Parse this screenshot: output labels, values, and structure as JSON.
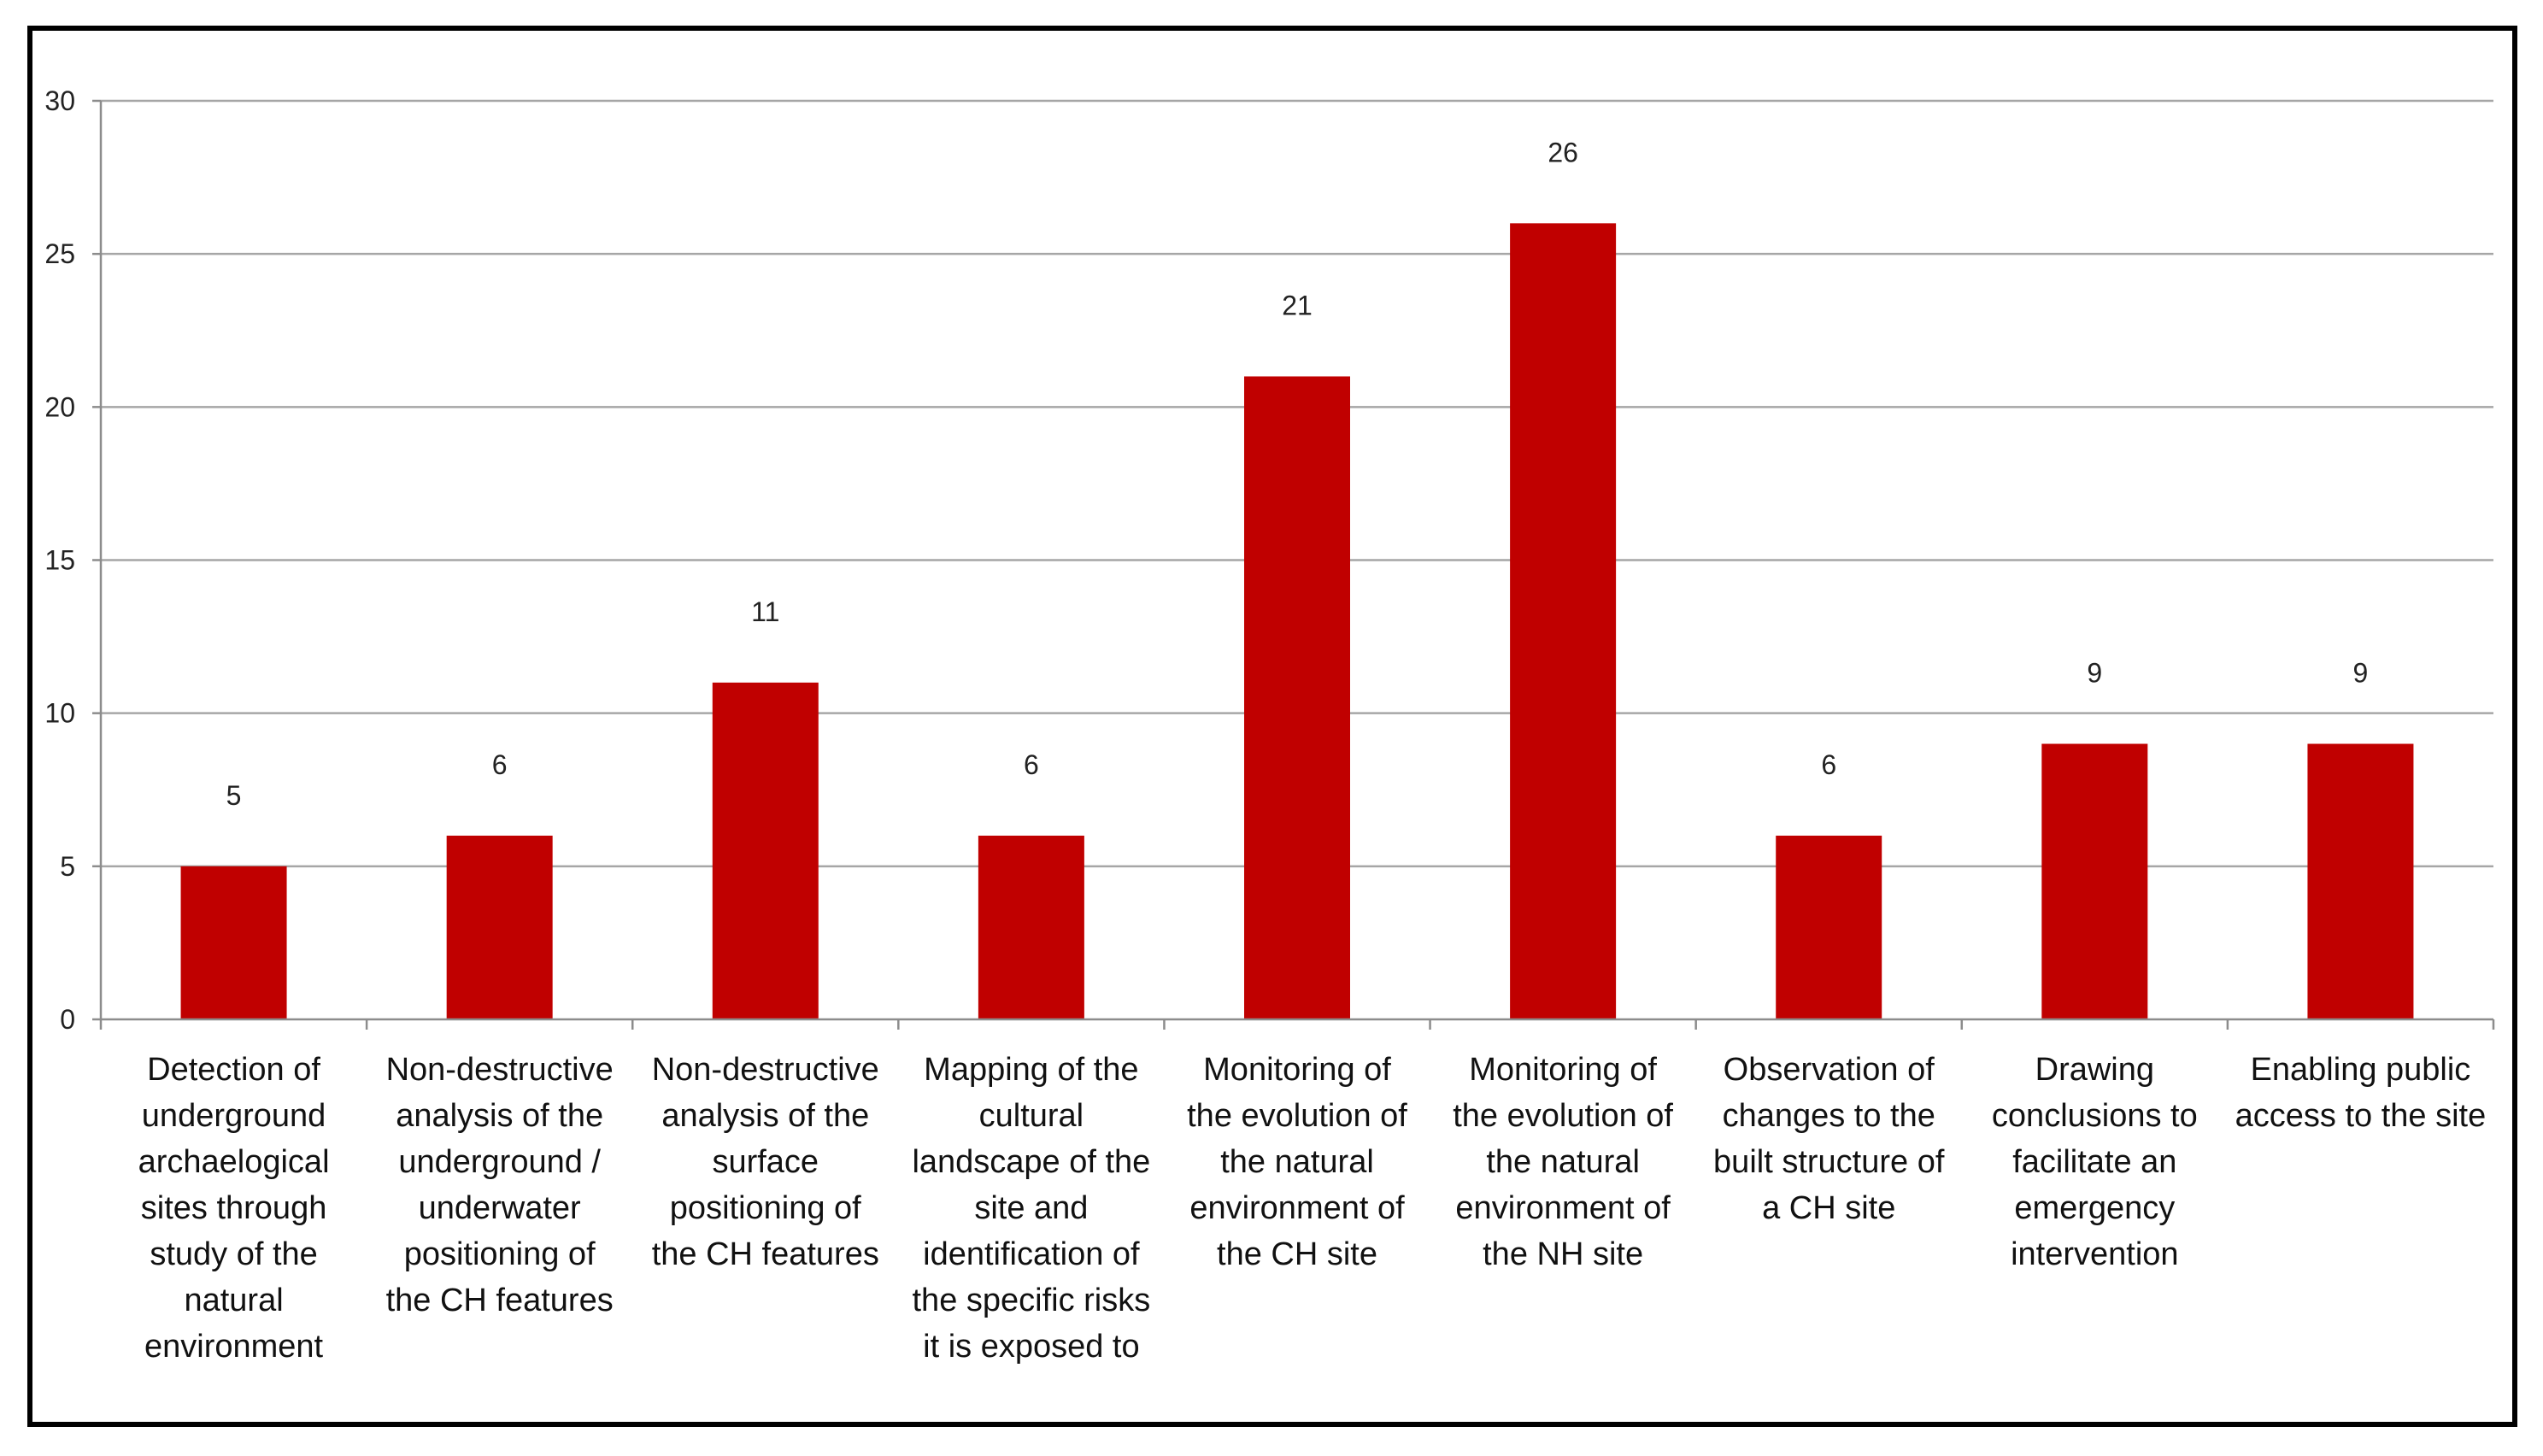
{
  "chart_data": {
    "type": "bar",
    "title": "",
    "xlabel": "",
    "ylabel": "",
    "ylim": [
      0,
      30
    ],
    "yticks": [
      0,
      5,
      10,
      15,
      20,
      25,
      30
    ],
    "grid": true,
    "legend": "none",
    "bar_color": "#c00000",
    "categories": [
      [
        "Detection of",
        "underground",
        "archaelogical",
        "sites through",
        "study of the",
        "natural",
        "environment"
      ],
      [
        "Non-destructive",
        "analysis of the",
        "underground /",
        "underwater",
        "positioning of",
        "the CH features"
      ],
      [
        "Non-destructive",
        "analysis of the",
        "surface",
        "positioning of",
        "the CH features"
      ],
      [
        "Mapping of the",
        "cultural",
        "landscape of the",
        "site and",
        "identification of",
        "the specific risks",
        "it is exposed to"
      ],
      [
        "Monitoring of",
        "the evolution of",
        "the natural",
        "environment of",
        "the CH site"
      ],
      [
        "Monitoring of",
        "the evolution of",
        "the natural",
        "environment of",
        "the NH site"
      ],
      [
        "Observation of",
        "changes to the",
        "built structure of",
        "a CH site"
      ],
      [
        "Drawing",
        "conclusions to",
        "facilitate an",
        "emergency",
        "intervention"
      ],
      [
        "Enabling public",
        "access to the site"
      ]
    ],
    "values": [
      5,
      6,
      11,
      6,
      21,
      26,
      6,
      9,
      9
    ]
  }
}
